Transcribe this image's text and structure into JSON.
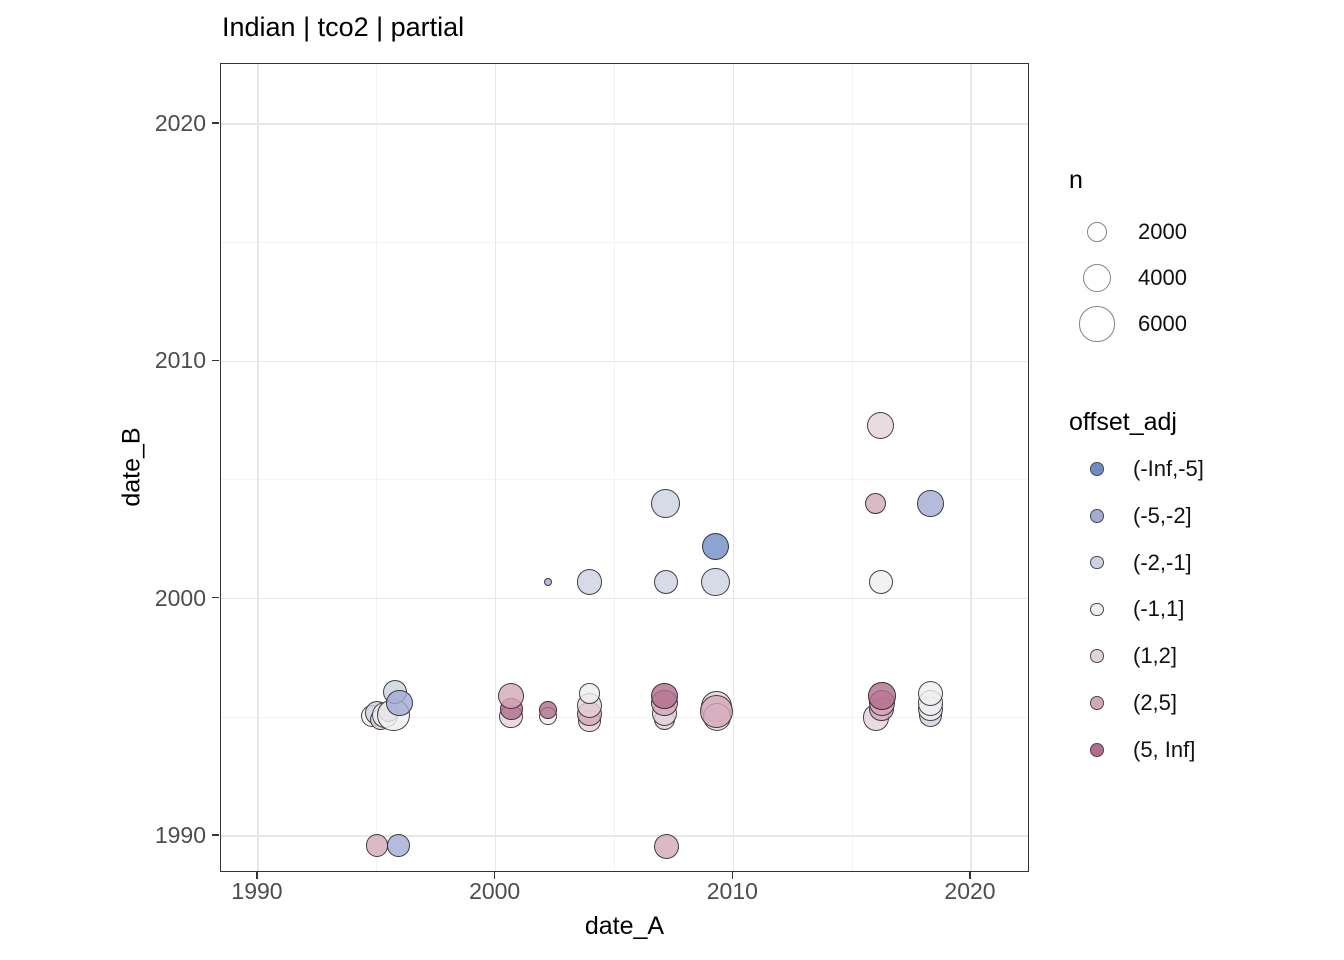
{
  "title": "Indian | tco2 | partial",
  "axes": {
    "x": {
      "label": "date_A",
      "tick_labels": [
        "1990",
        "2000",
        "2010",
        "2020"
      ],
      "tick_values": [
        1990,
        2000,
        2010,
        2020
      ],
      "minor_values": [
        1995,
        2005,
        2015
      ]
    },
    "y": {
      "label": "date_B",
      "tick_labels": [
        "1990",
        "2000",
        "2010",
        "2020"
      ],
      "tick_values": [
        1990,
        2000,
        2010,
        2020
      ],
      "minor_values": [
        1995,
        2005,
        2015
      ]
    }
  },
  "legend_size": {
    "title": "n",
    "entries": [
      {
        "label": "2000",
        "n": 2000
      },
      {
        "label": "4000",
        "n": 4000
      },
      {
        "label": "6000",
        "n": 6000
      }
    ]
  },
  "legend_color": {
    "title": "offset_adj",
    "entries": [
      {
        "label": "(-Inf,-5]",
        "color": "#6e8dc4"
      },
      {
        "label": "(-5,-2]",
        "color": "#a3aad3"
      },
      {
        "label": "(-2,-1]",
        "color": "#cdd1e1"
      },
      {
        "label": "(-1,1]",
        "color": "#efeff0"
      },
      {
        "label": "(1,2]",
        "color": "#e4d2d9"
      },
      {
        "label": "(2,5]",
        "color": "#d3a8b8"
      },
      {
        "label": "(5, Inf]",
        "color": "#b26d8c"
      }
    ]
  },
  "chart_data": {
    "type": "scatter",
    "title": "Indian | tco2 | partial",
    "xlabel": "date_A",
    "ylabel": "date_B",
    "xlim": [
      1988.4,
      2022.4
    ],
    "ylim": [
      1988.4,
      2022.4
    ],
    "grid": true,
    "legend_position": "right",
    "size_variable": "n",
    "size_legend_values": [
      2000,
      4000,
      6000
    ],
    "color_variable": "offset_adj",
    "color_categories": [
      "(-Inf,-5]",
      "(-5,-2]",
      "(-2,-1]",
      "(-1,1]",
      "(1,2]",
      "(2,5]",
      "(5, Inf]"
    ],
    "points": [
      {
        "x": 1994.8,
        "y": 1995.05,
        "n": 2400,
        "offset_adj": "(-1,1]"
      },
      {
        "x": 1995.0,
        "y": 1995.2,
        "n": 2800,
        "offset_adj": "(-2,-1]"
      },
      {
        "x": 1995.15,
        "y": 1994.9,
        "n": 2200,
        "offset_adj": "(1,2]"
      },
      {
        "x": 1995.35,
        "y": 1995.1,
        "n": 3200,
        "offset_adj": "(-1,1]"
      },
      {
        "x": 1995.5,
        "y": 1995.25,
        "n": 2200,
        "offset_adj": "(2,5]"
      },
      {
        "x": 1995.7,
        "y": 1995.1,
        "n": 5200,
        "offset_adj": "(-1,1]"
      },
      {
        "x": 1995.75,
        "y": 1996.05,
        "n": 2800,
        "offset_adj": "(-2,-1]"
      },
      {
        "x": 1995.95,
        "y": 1995.6,
        "n": 3400,
        "offset_adj": "(-5,-2]"
      },
      {
        "x": 1995.0,
        "y": 1989.6,
        "n": 2400,
        "offset_adj": "(2,5]"
      },
      {
        "x": 1995.9,
        "y": 1989.6,
        "n": 2500,
        "offset_adj": "(-5,-2]"
      },
      {
        "x": 2000.65,
        "y": 1995.05,
        "n": 2600,
        "offset_adj": "(1,2]"
      },
      {
        "x": 2000.65,
        "y": 1995.35,
        "n": 2500,
        "offset_adj": "(5, Inf]"
      },
      {
        "x": 2000.65,
        "y": 1995.9,
        "n": 3200,
        "offset_adj": "(2,5]"
      },
      {
        "x": 2002.2,
        "y": 1995.05,
        "n": 1500,
        "offset_adj": "(-1,1]"
      },
      {
        "x": 2002.2,
        "y": 1995.3,
        "n": 1500,
        "offset_adj": "(5, Inf]"
      },
      {
        "x": 2003.95,
        "y": 1994.85,
        "n": 2400,
        "offset_adj": "(1,2]"
      },
      {
        "x": 2003.95,
        "y": 1995.15,
        "n": 2800,
        "offset_adj": "(2,5]"
      },
      {
        "x": 2003.95,
        "y": 1995.5,
        "n": 3200,
        "offset_adj": "(1,2]"
      },
      {
        "x": 2003.95,
        "y": 1996.0,
        "n": 2000,
        "offset_adj": "(-1,1]"
      },
      {
        "x": 2002.2,
        "y": 2000.7,
        "n": 300,
        "offset_adj": "(-5,-2]"
      },
      {
        "x": 2003.95,
        "y": 2000.7,
        "n": 3200,
        "offset_adj": "(-2,-1]"
      },
      {
        "x": 2007.15,
        "y": 2004.0,
        "n": 4000,
        "offset_adj": "(-2,-1]"
      },
      {
        "x": 2007.15,
        "y": 2000.7,
        "n": 2800,
        "offset_adj": "(-2,-1]"
      },
      {
        "x": 2009.25,
        "y": 2000.7,
        "n": 4000,
        "offset_adj": "(-2,-1]"
      },
      {
        "x": 2009.25,
        "y": 2002.2,
        "n": 3600,
        "offset_adj": "(-Inf,-5]"
      },
      {
        "x": 2007.1,
        "y": 1994.9,
        "n": 2200,
        "offset_adj": "(1,2]"
      },
      {
        "x": 2007.1,
        "y": 1995.15,
        "n": 3000,
        "offset_adj": "(1,2]"
      },
      {
        "x": 2007.1,
        "y": 1995.6,
        "n": 3400,
        "offset_adj": "(2,5]"
      },
      {
        "x": 2007.1,
        "y": 1995.9,
        "n": 3400,
        "offset_adj": "(5, Inf]"
      },
      {
        "x": 2009.3,
        "y": 1995.45,
        "n": 4600,
        "offset_adj": "(1,2]"
      },
      {
        "x": 2009.3,
        "y": 1995.0,
        "n": 3800,
        "offset_adj": "(1,2]"
      },
      {
        "x": 2009.3,
        "y": 1995.25,
        "n": 5300,
        "offset_adj": "(2,5]"
      },
      {
        "x": 2007.2,
        "y": 1989.55,
        "n": 3000,
        "offset_adj": "(2,5]"
      },
      {
        "x": 2016.2,
        "y": 2007.3,
        "n": 3600,
        "offset_adj": "(1,2]"
      },
      {
        "x": 2016.0,
        "y": 2004.0,
        "n": 2100,
        "offset_adj": "(2,5]"
      },
      {
        "x": 2016.2,
        "y": 2000.7,
        "n": 2800,
        "offset_adj": "(-1,1]"
      },
      {
        "x": 2018.3,
        "y": 2004.0,
        "n": 3400,
        "offset_adj": "(-5,-2]"
      },
      {
        "x": 2016.0,
        "y": 1995.0,
        "n": 3400,
        "offset_adj": "(1,2]"
      },
      {
        "x": 2016.25,
        "y": 1995.35,
        "n": 3000,
        "offset_adj": "(2,5]"
      },
      {
        "x": 2016.25,
        "y": 1995.6,
        "n": 3200,
        "offset_adj": "(2,5]"
      },
      {
        "x": 2016.25,
        "y": 1995.9,
        "n": 3600,
        "offset_adj": "(5, Inf]"
      },
      {
        "x": 2018.3,
        "y": 1995.1,
        "n": 2600,
        "offset_adj": "(-2,-1]"
      },
      {
        "x": 2018.3,
        "y": 1995.35,
        "n": 2900,
        "offset_adj": "(-1,1]"
      },
      {
        "x": 2018.3,
        "y": 1995.6,
        "n": 3200,
        "offset_adj": "(-1,1]"
      },
      {
        "x": 2018.3,
        "y": 1996.0,
        "n": 3200,
        "offset_adj": "(-1,1]"
      }
    ]
  }
}
